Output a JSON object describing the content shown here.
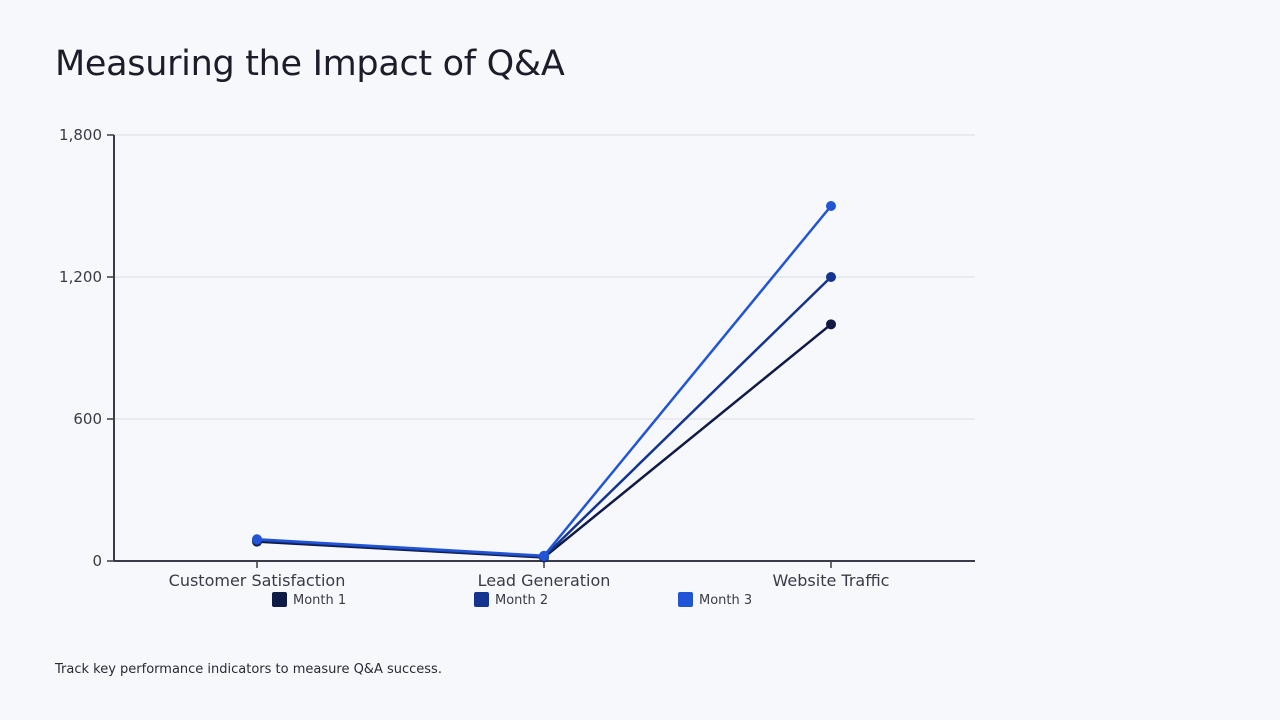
{
  "slide": {
    "title": "Measuring the Impact of Q&A",
    "footnote": "Track key performance indicators to measure Q&A success."
  },
  "chart_data": {
    "type": "line",
    "categories": [
      "Customer Satisfaction",
      "Lead Generation",
      "Website Traffic"
    ],
    "series": [
      {
        "name": "Month 1",
        "values": [
          82,
          15,
          1000
        ],
        "color": "#0f1a45"
      },
      {
        "name": "Month 2",
        "values": [
          88,
          18,
          1200
        ],
        "color": "#15348f"
      },
      {
        "name": "Month 3",
        "values": [
          92,
          22,
          1500
        ],
        "color": "#2155d6"
      }
    ],
    "yticks": [
      0,
      600,
      1200,
      1800
    ],
    "ytick_labels": [
      "0",
      "600",
      "1,200",
      "1,800"
    ],
    "ylim": [
      0,
      1800
    ],
    "grid": true,
    "legend_position": "bottom"
  }
}
